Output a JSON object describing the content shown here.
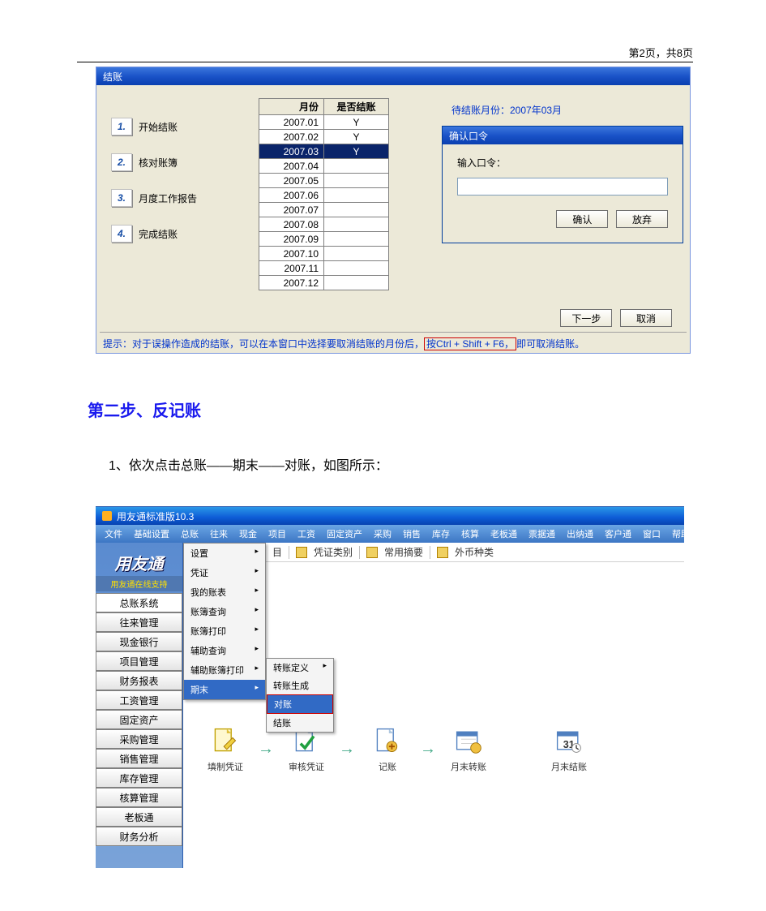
{
  "page": {
    "header": "第2页，共8页"
  },
  "shot1": {
    "title": "结账",
    "steps": [
      {
        "num": "1.",
        "label": "开始结账"
      },
      {
        "num": "2.",
        "label": "核对账簿"
      },
      {
        "num": "3.",
        "label": "月度工作报告"
      },
      {
        "num": "4.",
        "label": "完成结账"
      }
    ],
    "table": {
      "headers": [
        "月份",
        "是否结账"
      ],
      "rows": [
        {
          "month": "2007.01",
          "closed": "Y",
          "sel": false
        },
        {
          "month": "2007.02",
          "closed": "Y",
          "sel": false
        },
        {
          "month": "2007.03",
          "closed": "Y",
          "sel": true
        },
        {
          "month": "2007.04",
          "closed": "",
          "sel": false
        },
        {
          "month": "2007.05",
          "closed": "",
          "sel": false
        },
        {
          "month": "2007.06",
          "closed": "",
          "sel": false
        },
        {
          "month": "2007.07",
          "closed": "",
          "sel": false
        },
        {
          "month": "2007.08",
          "closed": "",
          "sel": false
        },
        {
          "month": "2007.09",
          "closed": "",
          "sel": false
        },
        {
          "month": "2007.10",
          "closed": "",
          "sel": false
        },
        {
          "month": "2007.11",
          "closed": "",
          "sel": false
        },
        {
          "month": "2007.12",
          "closed": "",
          "sel": false
        }
      ]
    },
    "pending": "待结账月份：2007年03月",
    "pw": {
      "title": "确认口令",
      "label": "输入口令：",
      "value": "",
      "ok": "确认",
      "cancel": "放弃"
    },
    "bottom": {
      "next": "下一步",
      "cancel": "取消"
    },
    "tip_prefix": "提示：对于误操作造成的结账，可以在本窗口中选择要取消结账的月份后，",
    "tip_box_pre": "按",
    "tip_box_key": "Ctrl + Shift + F6，",
    "tip_suffix": "即可取消结账。"
  },
  "section_heading": "第二步、反记账",
  "instruction": "1、依次点击总账——期末——对账，如图所示：",
  "shot2": {
    "title": "用友通标准版10.3",
    "menubar": [
      "文件",
      "基础设置",
      "总账",
      "往来",
      "现金",
      "项目",
      "工资",
      "固定资产",
      "采购",
      "销售",
      "库存",
      "核算",
      "老板通",
      "票据通",
      "出纳通",
      "客户通",
      "窗口",
      "帮助"
    ],
    "toolbar": [
      "目",
      "凭证类别",
      "常用摘要",
      "外币种类"
    ],
    "left": {
      "title": "用友通",
      "sub": "用友通在线支持",
      "items": [
        "总账系统",
        "往来管理",
        "现金银行",
        "项目管理",
        "财务报表",
        "工资管理",
        "固定资产",
        "采购管理",
        "销售管理",
        "库存管理",
        "核算管理",
        "老板通",
        "财务分析"
      ]
    },
    "dropdown1": [
      "设置",
      "凭证",
      "我的账表",
      "账簿查询",
      "账簿打印",
      "辅助查询",
      "辅助账簿打印",
      "期末"
    ],
    "dropdown1_arrow_idx": [
      0,
      1,
      2,
      3,
      4,
      5,
      6,
      7
    ],
    "dropdown1_sel_idx": 7,
    "dropdown2": [
      "转账定义",
      "转账生成",
      "对账",
      "结账"
    ],
    "dropdown2_sel_idx": 2,
    "dropdown2_arrow_idx": [
      0
    ],
    "workflow": [
      "填制凭证",
      "审核凭证",
      "记账",
      "月末转账",
      "月末结账"
    ]
  }
}
